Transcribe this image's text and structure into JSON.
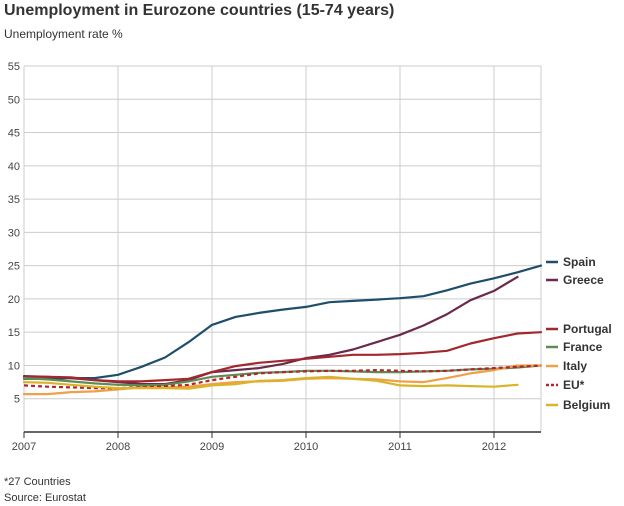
{
  "colors": {
    "spain": "#1f4e6b",
    "greece": "#6b2a4a",
    "portugal": "#a3282d",
    "france": "#5e8b56",
    "italy": "#f0a046",
    "eu": "#b2252b",
    "belgium": "#d9b428",
    "grid": "#cccccc",
    "axis": "#333333"
  },
  "chart_data": {
    "type": "line",
    "title": "Unemployment in Eurozone countries (15-74 years)",
    "ylabel": "Unemployment rate %",
    "xlabel": "",
    "xlim": [
      2007,
      2012.5
    ],
    "ylim": [
      0,
      55
    ],
    "xticks": [
      2007,
      2008,
      2009,
      2010,
      2011,
      2012
    ],
    "yticks": [
      5,
      10,
      15,
      20,
      25,
      30,
      35,
      40,
      45,
      50,
      55
    ],
    "grid": true,
    "legend_position": "right",
    "footnote": "*27 Countries",
    "source": "Source: Eurostat",
    "series": [
      {
        "key": "spain",
        "name": "Spain",
        "dashed": false,
        "x": [
          2007,
          2007.25,
          2007.5,
          2007.75,
          2008,
          2008.25,
          2008.5,
          2008.75,
          2009,
          2009.25,
          2009.5,
          2009.75,
          2010,
          2010.25,
          2010.5,
          2010.75,
          2011,
          2011.25,
          2011.5,
          2011.75,
          2012,
          2012.25,
          2012.5
        ],
        "values": [
          8.0,
          8.0,
          8.1,
          8.1,
          8.6,
          9.8,
          11.2,
          13.5,
          16.1,
          17.3,
          17.9,
          18.4,
          18.8,
          19.5,
          19.7,
          19.9,
          20.1,
          20.4,
          21.3,
          22.3,
          23.1,
          24.0,
          25.0
        ]
      },
      {
        "key": "greece",
        "name": "Greece",
        "dashed": false,
        "x": [
          2007,
          2007.25,
          2007.5,
          2007.75,
          2008,
          2008.25,
          2008.5,
          2008.75,
          2009,
          2009.25,
          2009.5,
          2009.75,
          2010,
          2010.25,
          2010.5,
          2010.75,
          2011,
          2011.25,
          2011.5,
          2011.75,
          2012,
          2012.25
        ],
        "values": [
          8.4,
          8.3,
          8.1,
          7.8,
          7.5,
          7.2,
          7.2,
          7.8,
          9.0,
          9.3,
          9.6,
          10.2,
          11.1,
          11.6,
          12.4,
          13.5,
          14.6,
          16.0,
          17.7,
          19.8,
          21.2,
          23.3
        ]
      },
      {
        "key": "portugal",
        "name": "Portugal",
        "dashed": false,
        "x": [
          2007,
          2007.25,
          2007.5,
          2007.75,
          2008,
          2008.25,
          2008.5,
          2008.75,
          2009,
          2009.25,
          2009.5,
          2009.75,
          2010,
          2010.25,
          2010.5,
          2010.75,
          2011,
          2011.25,
          2011.5,
          2011.75,
          2012,
          2012.25,
          2012.5
        ],
        "values": [
          8.3,
          8.3,
          8.2,
          7.8,
          7.6,
          7.6,
          7.8,
          8.0,
          9.0,
          9.9,
          10.4,
          10.7,
          11.0,
          11.3,
          11.6,
          11.6,
          11.7,
          11.9,
          12.2,
          13.3,
          14.1,
          14.8,
          15.0
        ]
      },
      {
        "key": "france",
        "name": "France",
        "dashed": false,
        "x": [
          2007,
          2007.25,
          2007.5,
          2007.75,
          2008,
          2008.25,
          2008.5,
          2008.75,
          2009,
          2009.25,
          2009.5,
          2009.75,
          2010,
          2010.25,
          2010.5,
          2010.75,
          2011,
          2011.25,
          2011.5,
          2011.75,
          2012,
          2012.25,
          2012.5
        ],
        "values": [
          8.1,
          7.9,
          7.6,
          7.3,
          7.1,
          7.0,
          7.1,
          7.6,
          8.3,
          8.6,
          8.9,
          9.0,
          9.2,
          9.2,
          9.1,
          9.0,
          9.0,
          9.1,
          9.2,
          9.4,
          9.5,
          9.7,
          10.0
        ]
      },
      {
        "key": "italy",
        "name": "Italy",
        "dashed": false,
        "x": [
          2007,
          2007.25,
          2007.5,
          2007.75,
          2008,
          2008.25,
          2008.5,
          2008.75,
          2009,
          2009.25,
          2009.5,
          2009.75,
          2010,
          2010.25,
          2010.5,
          2010.75,
          2011,
          2011.25,
          2011.5,
          2011.75,
          2012,
          2012.25,
          2012.5
        ],
        "values": [
          5.7,
          5.7,
          6.0,
          6.1,
          6.4,
          6.7,
          6.7,
          6.8,
          7.2,
          7.5,
          7.6,
          7.7,
          8.0,
          8.1,
          8.0,
          7.9,
          7.6,
          7.5,
          8.1,
          8.8,
          9.3,
          10.0,
          10.0
        ]
      },
      {
        "key": "eu",
        "name": "EU*",
        "dashed": true,
        "x": [
          2007,
          2007.25,
          2007.5,
          2007.75,
          2008,
          2008.25,
          2008.5,
          2008.75,
          2009,
          2009.25,
          2009.5,
          2009.75,
          2010,
          2010.25,
          2010.5,
          2010.75,
          2011,
          2011.25,
          2011.5,
          2011.75,
          2012,
          2012.25,
          2012.5
        ],
        "values": [
          7.0,
          6.8,
          6.7,
          6.6,
          6.6,
          6.7,
          6.9,
          7.1,
          7.8,
          8.3,
          8.8,
          9.0,
          9.1,
          9.2,
          9.2,
          9.3,
          9.2,
          9.1,
          9.2,
          9.4,
          9.6,
          9.8,
          10.0
        ]
      },
      {
        "key": "belgium",
        "name": "Belgium",
        "dashed": false,
        "x": [
          2007,
          2007.25,
          2007.5,
          2007.75,
          2008,
          2008.25,
          2008.5,
          2008.75,
          2009,
          2009.25,
          2009.5,
          2009.75,
          2010,
          2010.25,
          2010.5,
          2010.75,
          2011,
          2011.25,
          2011.5,
          2011.75,
          2012,
          2012.25
        ],
        "values": [
          7.5,
          7.4,
          7.1,
          6.8,
          6.6,
          6.6,
          6.6,
          6.5,
          7.0,
          7.2,
          7.7,
          7.8,
          8.1,
          8.3,
          8.0,
          7.7,
          7.0,
          6.9,
          7.0,
          6.9,
          6.8,
          7.1
        ]
      }
    ]
  }
}
